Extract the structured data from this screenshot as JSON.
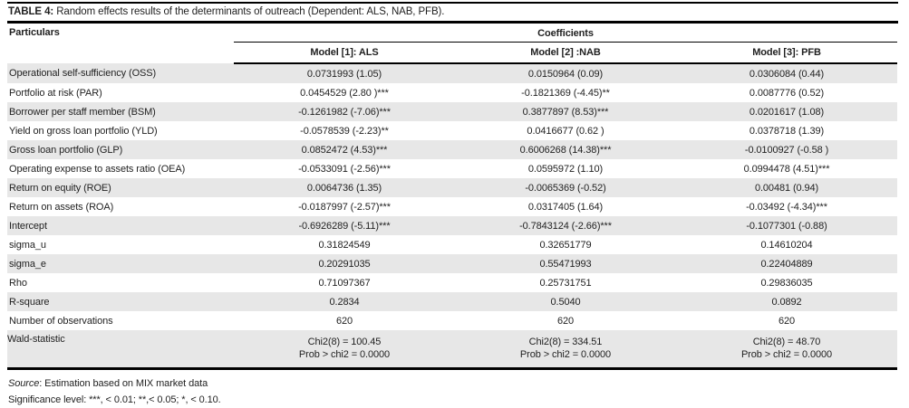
{
  "table": {
    "title_label": "TABLE 4:",
    "title_text": " Random effects results of the determinants of outreach (Dependent: ALS, NAB, PFB).",
    "particulars_header": "Particulars",
    "coefficients_header": "Coefficients",
    "model_headers": [
      "Model [1]: ALS",
      "Model [2] :NAB",
      "Model [3]: PFB"
    ],
    "rows": [
      {
        "label": "Operational self-sufficiency (OSS)",
        "values": [
          "0.0731993 (1.05)",
          "0.0150964 (0.09)",
          "0.0306084 (0.44)"
        ]
      },
      {
        "label": "Portfolio at risk (PAR)",
        "values": [
          "0.0454529 (2.80 )***",
          "-0.1821369 (-4.45)**",
          "0.0087776 (0.52)"
        ]
      },
      {
        "label": "Borrower per staff member (BSM)",
        "values": [
          "-0.1261982 (-7.06)***",
          "0.3877897 (8.53)***",
          "0.0201617 (1.08)"
        ]
      },
      {
        "label": "Yield on gross loan portfolio (YLD)",
        "values": [
          "-0.0578539 (-2.23)**",
          "0.0416677 (0.62 )",
          "0.0378718 (1.39)"
        ]
      },
      {
        "label": "Gross loan portfolio (GLP)",
        "values": [
          "0.0852472 (4.53)***",
          "0.6006268 (14.38)***",
          "-0.0100927 (-0.58 )"
        ]
      },
      {
        "label": "Operating expense to assets ratio (OEA)",
        "values": [
          "-0.0533091 (-2.56)***",
          "0.0595972 (1.10)",
          "0.0994478 (4.51)***"
        ]
      },
      {
        "label": "Return on equity (ROE)",
        "values": [
          "0.0064736 (1.35)",
          "-0.0065369 (-0.52)",
          "0.00481 (0.94)"
        ]
      },
      {
        "label": "Return on assets (ROA)",
        "values": [
          "-0.0187997 (-2.57)***",
          "0.0317405 (1.64)",
          "-0.03492 (-4.34)***"
        ]
      },
      {
        "label": "Intercept",
        "values": [
          "-0.6926289 (-5.11)***",
          "-0.7843124 (-2.66)***",
          "-0.1077301 (-0.88)"
        ]
      },
      {
        "label": "sigma_u",
        "values": [
          "0.31824549",
          "0.32651779",
          "0.14610204"
        ]
      },
      {
        "label": "sigma_e",
        "values": [
          "0.20291035",
          "0.55471993",
          "0.22404889"
        ]
      },
      {
        "label": "Rho",
        "values": [
          "0.71097367",
          "0.25731751",
          "0.29836035"
        ]
      },
      {
        "label": "R-square",
        "values": [
          "0.2834",
          "0.5040",
          "0.0892"
        ]
      },
      {
        "label": "Number of observations",
        "values": [
          "620",
          "620",
          "620"
        ]
      }
    ],
    "wald": {
      "label": "Wald-statistic",
      "chi2": [
        "Chi2(8) = 100.45",
        "Chi2(8) = 334.51",
        "Chi2(8) = 48.70"
      ],
      "prob": [
        "Prob > chi2 = 0.0000",
        "Prob > chi2 = 0.0000",
        "Prob > chi2 = 0.0000"
      ]
    }
  },
  "footer": {
    "source_label": "Source",
    "source_text": ": Estimation based on MIX market data",
    "significance": "Significance level: ***, < 0.01; **,< 0.05; *, < 0.10."
  },
  "colors": {
    "row_shade": "#e7e7e7",
    "rule": "#000000",
    "text": "#1f1f1f"
  }
}
